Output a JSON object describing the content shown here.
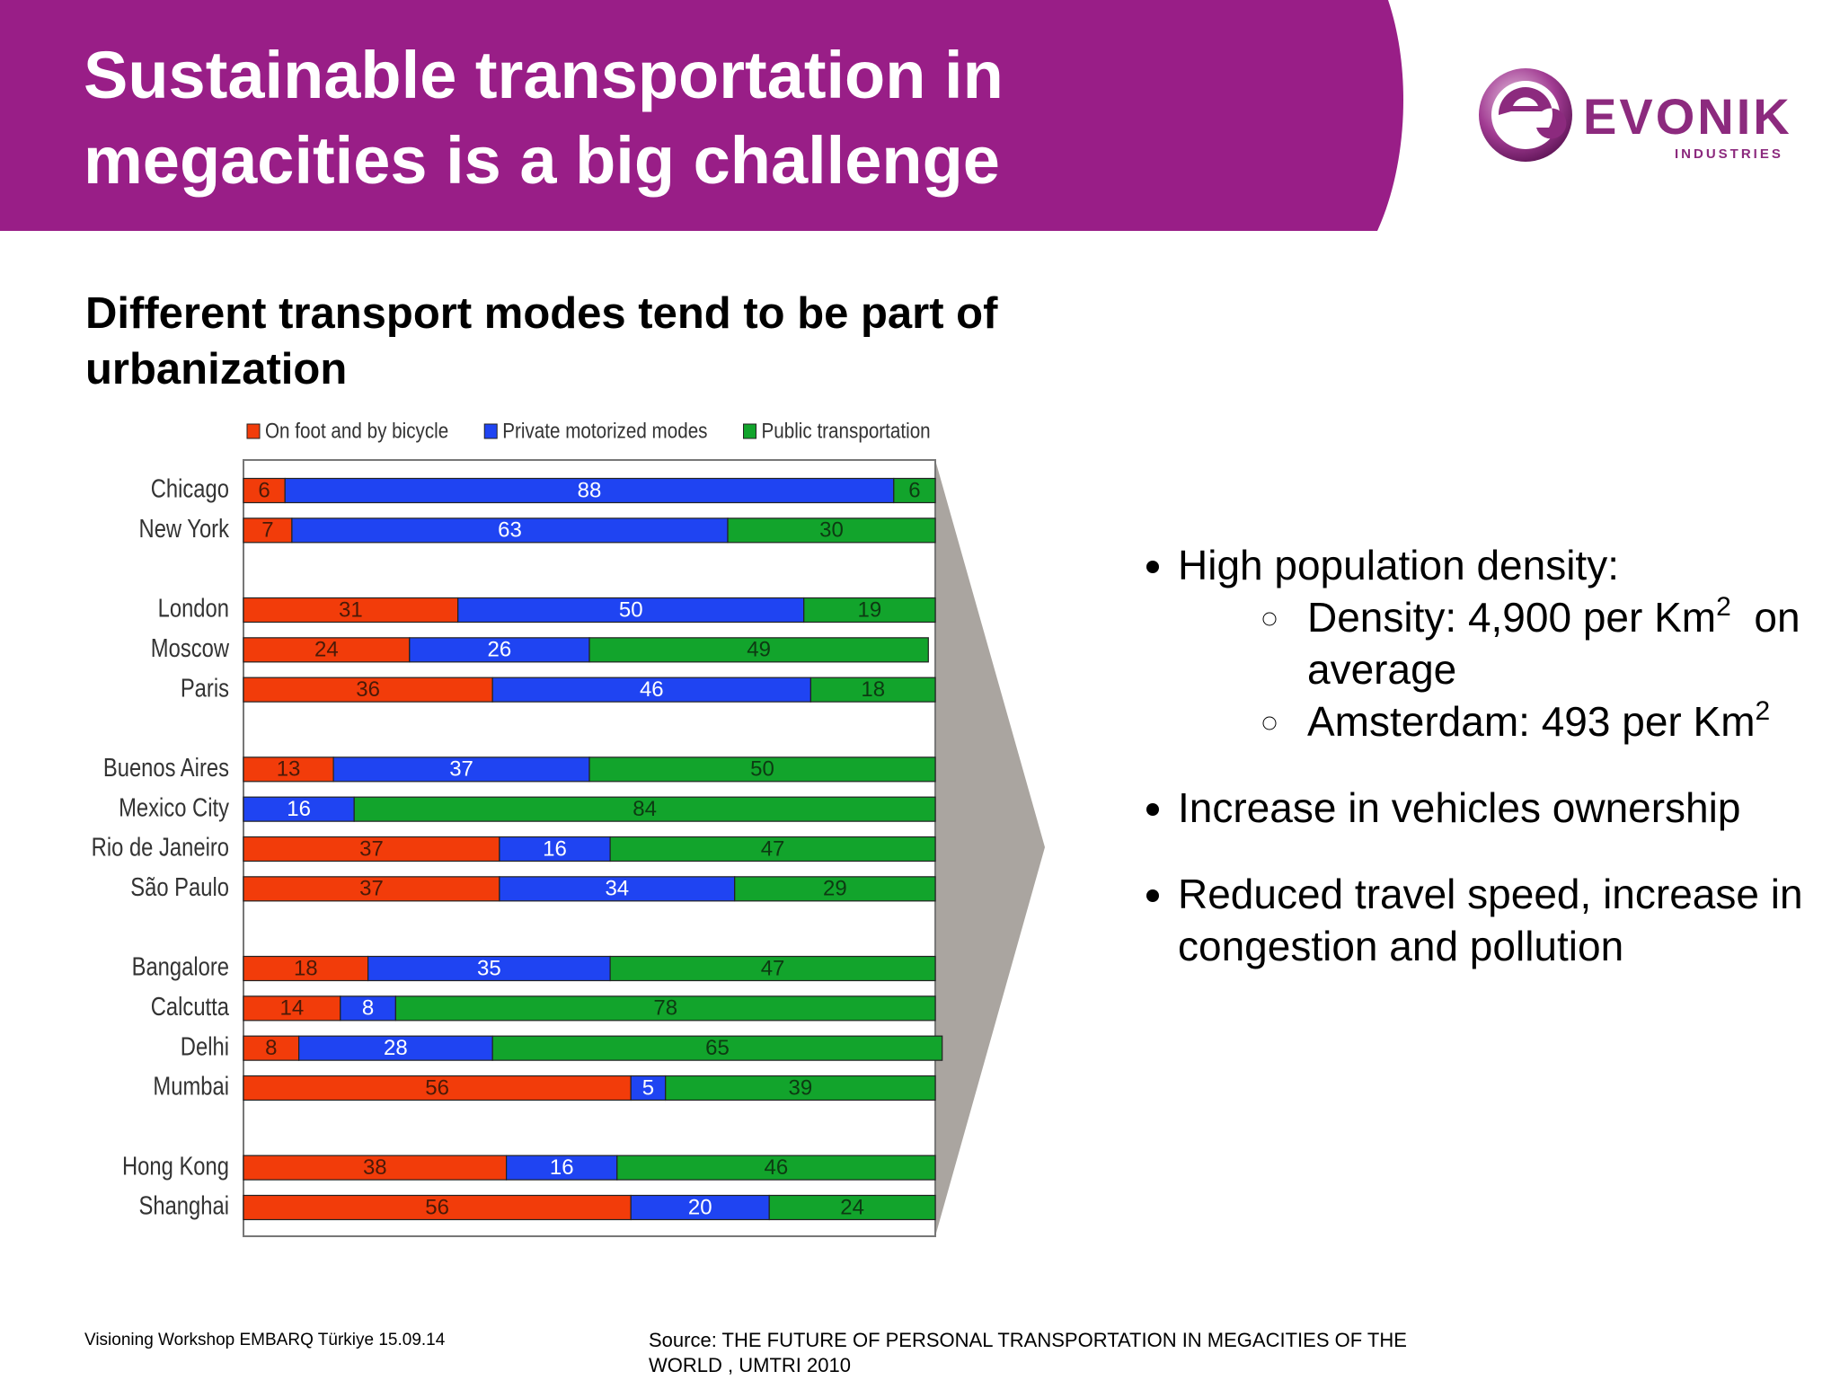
{
  "header": {
    "title": "Sustainable transportation in megacities is a big challenge"
  },
  "logo": {
    "name": "EVONIK",
    "tagline": "INDUSTRIES"
  },
  "subtitle": "Different transport modes tend to be part of urbanization",
  "chart_data": {
    "type": "stacked-bar-horizontal",
    "categories": [
      "Chicago",
      "New York",
      null,
      "London",
      "Moscow",
      "Paris",
      null,
      "Buenos Aires",
      "Mexico City",
      "Rio de Janeiro",
      "São Paulo",
      null,
      "Bangalore",
      "Calcutta",
      "Delhi",
      "Mumbai",
      null,
      "Hong Kong",
      "Shanghai"
    ],
    "series": [
      {
        "name": "On foot and by bicycle",
        "color": "#f23c0a",
        "values": [
          6,
          7,
          null,
          31,
          24,
          36,
          null,
          13,
          null,
          37,
          37,
          null,
          18,
          14,
          8,
          56,
          null,
          38,
          56
        ]
      },
      {
        "name": "Private motorized modes",
        "color": "#1f44f2",
        "values": [
          88,
          63,
          null,
          50,
          26,
          46,
          null,
          37,
          16,
          16,
          34,
          null,
          35,
          8,
          28,
          5,
          null,
          16,
          20
        ]
      },
      {
        "name": "Public transportation",
        "color": "#12a42c",
        "values": [
          6,
          30,
          null,
          19,
          49,
          18,
          null,
          50,
          84,
          47,
          29,
          null,
          47,
          78,
          65,
          39,
          null,
          46,
          24
        ]
      }
    ],
    "xlim": [
      0,
      100
    ],
    "legend": "top"
  },
  "bullets": [
    {
      "text": "High population density:",
      "sub": [
        {
          "text": "Density: 4,900 per Km",
          "sup": "2",
          "tail": "  on average"
        },
        {
          "text": "Amsterdam: 493 per Km",
          "sup": "2"
        }
      ]
    },
    {
      "text": "Increase in vehicles ownership"
    },
    {
      "text": "Reduced travel speed, increase in congestion and pollution"
    }
  ],
  "footer": {
    "left": "Visioning Workshop EMBARQ Türkiye  15.09.14",
    "source": "Source: THE FUTURE OF PERSONAL TRANSPORTATION IN MEGACITIES  OF THE WORLD , UMTRI 2010"
  }
}
